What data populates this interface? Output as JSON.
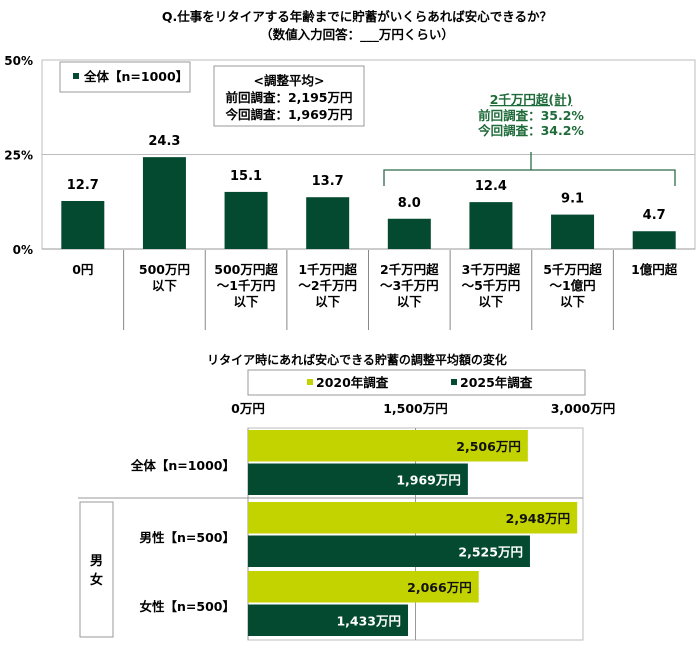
{
  "colors": {
    "dark_green": "#034a30",
    "light_green": "#c3d300",
    "accent_text": "#1f6b3a"
  },
  "chart_data": [
    {
      "type": "bar",
      "title": "Q.仕事をリタイアする年齢までに貯蓄がいくらあれば安心できるか？",
      "subtitle": "（数値入力回答：___万円くらい）",
      "categories": [
        [
          "0円"
        ],
        [
          "500万円",
          "以下"
        ],
        [
          "500万円超",
          "～1千万円",
          "以下"
        ],
        [
          "1千万円超",
          "～2千万円",
          "以下"
        ],
        [
          "2千万円超",
          "～3千万円",
          "以下"
        ],
        [
          "3千万円超",
          "～5千万円",
          "以下"
        ],
        [
          "5千万円超",
          "～1億円",
          "以下"
        ],
        [
          "1億円超"
        ]
      ],
      "series": [
        {
          "name": "全体【n=1000】",
          "values": [
            12.7,
            24.3,
            15.1,
            13.7,
            8.0,
            12.4,
            9.1,
            4.7
          ]
        }
      ],
      "ylim": [
        0,
        50
      ],
      "yticks": [
        "0%",
        "25%",
        "50%"
      ],
      "grid": true,
      "legend": "top-left",
      "annotations": {
        "average_box": [
          "<調整平均>",
          "前回調査：2,195万円",
          "今回調査：1,969万円"
        ],
        "over_20m": {
          "title": "2千万円超(計)",
          "lines": [
            "前回調査：35.2%",
            "今回調査：34.2%"
          ]
        }
      }
    },
    {
      "type": "bar",
      "orientation": "horizontal",
      "title": "リタイア時にあれば安心できる貯蓄の調整平均額の変化",
      "xticks": [
        "0万円",
        "1,500万円",
        "3,000万円"
      ],
      "xlim": [
        0,
        3000
      ],
      "legend": "top",
      "categories": [
        "全体【n=1000】",
        "男性【n=500】",
        "女性【n=500】"
      ],
      "group_label": "男女",
      "series": [
        {
          "name": "2020年調査",
          "values": [
            2506,
            2948,
            2066
          ],
          "labels": [
            "2,506万円",
            "2,948万円",
            "2,066万円"
          ]
        },
        {
          "name": "2025年調査",
          "values": [
            1969,
            2525,
            1433
          ],
          "labels": [
            "1,969万円",
            "2,525万円",
            "1,433万円"
          ]
        }
      ]
    }
  ]
}
